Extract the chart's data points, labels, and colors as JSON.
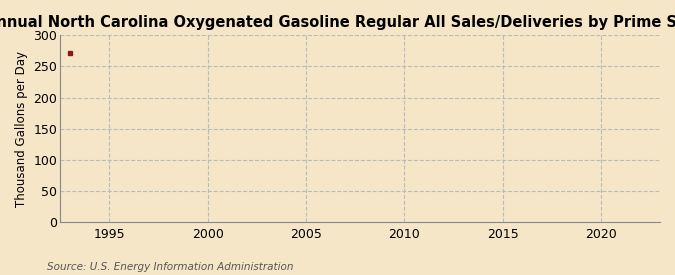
{
  "title": "Annual North Carolina Oxygenated Gasoline Regular All Sales/Deliveries by Prime Supplier",
  "ylabel": "Thousand Gallons per Day",
  "source": "Source: U.S. Energy Information Administration",
  "background_color": "#f5e6c8",
  "plot_bg_color": "#f5e6c8",
  "data_x": [
    1993
  ],
  "data_y": [
    272.0
  ],
  "data_color": "#8b1a1a",
  "xlim": [
    1992.5,
    2023
  ],
  "ylim": [
    0,
    300
  ],
  "yticks": [
    0,
    50,
    100,
    150,
    200,
    250,
    300
  ],
  "xticks": [
    1995,
    2000,
    2005,
    2010,
    2015,
    2020
  ],
  "grid_color": "#bbbbbb",
  "spine_color": "#888888",
  "title_fontsize": 10.5,
  "label_fontsize": 8.5,
  "tick_fontsize": 9,
  "source_fontsize": 7.5
}
